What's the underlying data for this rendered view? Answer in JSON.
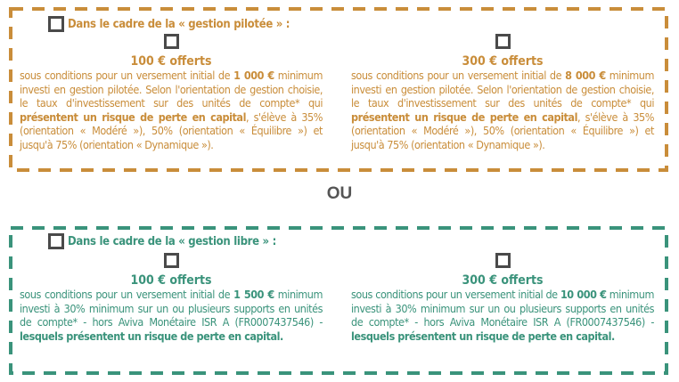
{
  "colors": {
    "pilotee": "#c98d3a",
    "libre": "#3a937b",
    "checkbox": "#4a4a4a"
  },
  "pilotee": {
    "heading": "Dans le cadre de la « gestion pilotée » :",
    "offers": [
      {
        "amount": "100 € offerts",
        "segments": [
          {
            "text": "sous conditions pour un versement initial de ",
            "bold": false
          },
          {
            "text": "1 000 €",
            "bold": true
          },
          {
            "text": " minimum investi en gestion pilotée. Selon l'orientation de gestion choisie, le taux d'investissement sur des unités de compte* qui ",
            "bold": false
          },
          {
            "text": "présentent un risque de perte en capital",
            "bold": true
          },
          {
            "text": ", s'élève à 35% (orientation « Modéré »), 50% (orientation « Équilibre ») et jusqu'à 75% (orientation « Dynamique »).",
            "bold": false
          }
        ]
      },
      {
        "amount": "300 € offerts",
        "segments": [
          {
            "text": "sous conditions pour un versement initial de ",
            "bold": false
          },
          {
            "text": "8 000 €",
            "bold": true
          },
          {
            "text": " minimum investi en gestion pilotée. Selon l'orientation de gestion choisie, le taux d'investissement sur des unités de compte* qui ",
            "bold": false
          },
          {
            "text": "présentent un risque de perte en capital",
            "bold": true
          },
          {
            "text": ", s'élève à 35% (orientation « Modéré »), 50% (orientation « Équilibre ») et jusqu'à 75% (orientation « Dynamique »).",
            "bold": false
          }
        ]
      }
    ]
  },
  "separator": "OU",
  "libre": {
    "heading": "Dans le cadre de la « gestion libre » :",
    "offers": [
      {
        "amount": "100 € offerts",
        "segments": [
          {
            "text": "sous conditions pour un versement initial de ",
            "bold": false
          },
          {
            "text": "1 500 €",
            "bold": true
          },
          {
            "text": " minimum investi à 30% minimum sur un ou plusieurs supports en unités de compte* - hors Aviva Monétaire ISR A (FR0007437546) - ",
            "bold": false
          },
          {
            "text": "lesquels présentent un risque de perte en capital.",
            "bold": true
          }
        ]
      },
      {
        "amount": "300 € offerts",
        "segments": [
          {
            "text": "sous conditions pour un versement initial de ",
            "bold": false
          },
          {
            "text": "10 000 €",
            "bold": true
          },
          {
            "text": " minimum investi à 30% minimum sur un ou plusieurs supports en unités de compte* - hors Aviva Monétaire ISR A (FR0007437546) - ",
            "bold": false
          },
          {
            "text": "lesquels présentent un risque de perte en capital.",
            "bold": true
          }
        ]
      }
    ]
  }
}
